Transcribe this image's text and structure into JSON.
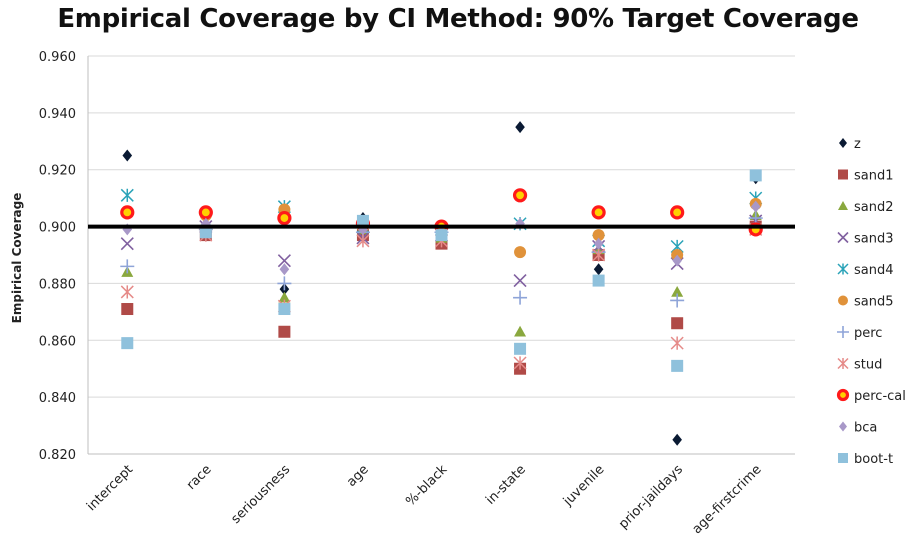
{
  "chart_data": {
    "type": "scatter",
    "title": "Empirical Coverage by CI Method: 90% Target Coverage",
    "xlabel": "",
    "ylabel": "Empirical Coverage",
    "ylim": [
      0.82,
      0.96
    ],
    "yticks": [
      "0.960",
      "0.940",
      "0.920",
      "0.900",
      "0.880",
      "0.860",
      "0.840",
      "0.820"
    ],
    "ytick_values": [
      0.96,
      0.94,
      0.92,
      0.9,
      0.88,
      0.86,
      0.84,
      0.82
    ],
    "target_line": 0.9,
    "grid": true,
    "legend_position": "right",
    "categories": [
      "intercept",
      "race",
      "seriousness",
      "age",
      "%-black",
      "in-state",
      "juvenile",
      "prior-jaildays",
      "age-firstcrime"
    ],
    "series": [
      {
        "name": "z",
        "color": "#0a1a33",
        "marker": "diamond",
        "values": [
          0.925,
          0.898,
          0.878,
          0.903,
          0.899,
          0.935,
          0.885,
          0.825,
          0.917
        ]
      },
      {
        "name": "sand1",
        "color": "#b04a47",
        "marker": "square",
        "values": [
          0.871,
          0.897,
          0.863,
          0.897,
          0.894,
          0.85,
          0.89,
          0.866,
          0.9
        ]
      },
      {
        "name": "sand2",
        "color": "#8aa83e",
        "marker": "triangle",
        "values": [
          0.884,
          0.899,
          0.875,
          0.899,
          0.896,
          0.863,
          0.892,
          0.877,
          0.904
        ]
      },
      {
        "name": "sand3",
        "color": "#8060a0",
        "marker": "xcross",
        "values": [
          0.894,
          0.9,
          0.888,
          0.896,
          0.897,
          0.881,
          0.893,
          0.887,
          0.902
        ]
      },
      {
        "name": "sand4",
        "color": "#2aa3b8",
        "marker": "asterisk",
        "values": [
          0.911,
          0.902,
          0.907,
          0.9,
          0.899,
          0.901,
          0.895,
          0.893,
          0.91
        ]
      },
      {
        "name": "sand5",
        "color": "#e0923a",
        "marker": "circle",
        "values": [
          0.905,
          0.904,
          0.906,
          0.9,
          0.899,
          0.891,
          0.897,
          0.89,
          0.908
        ]
      },
      {
        "name": "perc",
        "color": "#8ea4d8",
        "marker": "plus",
        "values": [
          0.886,
          0.899,
          0.88,
          0.898,
          0.898,
          0.875,
          0.891,
          0.874,
          0.903
        ]
      },
      {
        "name": "stud",
        "color": "#e58a88",
        "marker": "asterisk",
        "values": [
          0.877,
          0.897,
          0.872,
          0.895,
          0.895,
          0.852,
          0.89,
          0.859,
          0.899
        ]
      },
      {
        "name": "perc-cal",
        "color": "#ff1a1a",
        "marker": "ring",
        "values": [
          0.905,
          0.905,
          0.903,
          0.901,
          0.9,
          0.911,
          0.905,
          0.905,
          0.899
        ]
      },
      {
        "name": "bca",
        "color": "#a898c8",
        "marker": "diamond",
        "values": [
          0.899,
          0.901,
          0.885,
          0.899,
          0.898,
          0.901,
          0.894,
          0.888,
          0.907
        ]
      },
      {
        "name": "boot-t",
        "color": "#8fc1dc",
        "marker": "square",
        "values": [
          0.859,
          0.898,
          0.871,
          0.902,
          0.897,
          0.857,
          0.881,
          0.851,
          0.918
        ]
      }
    ]
  }
}
